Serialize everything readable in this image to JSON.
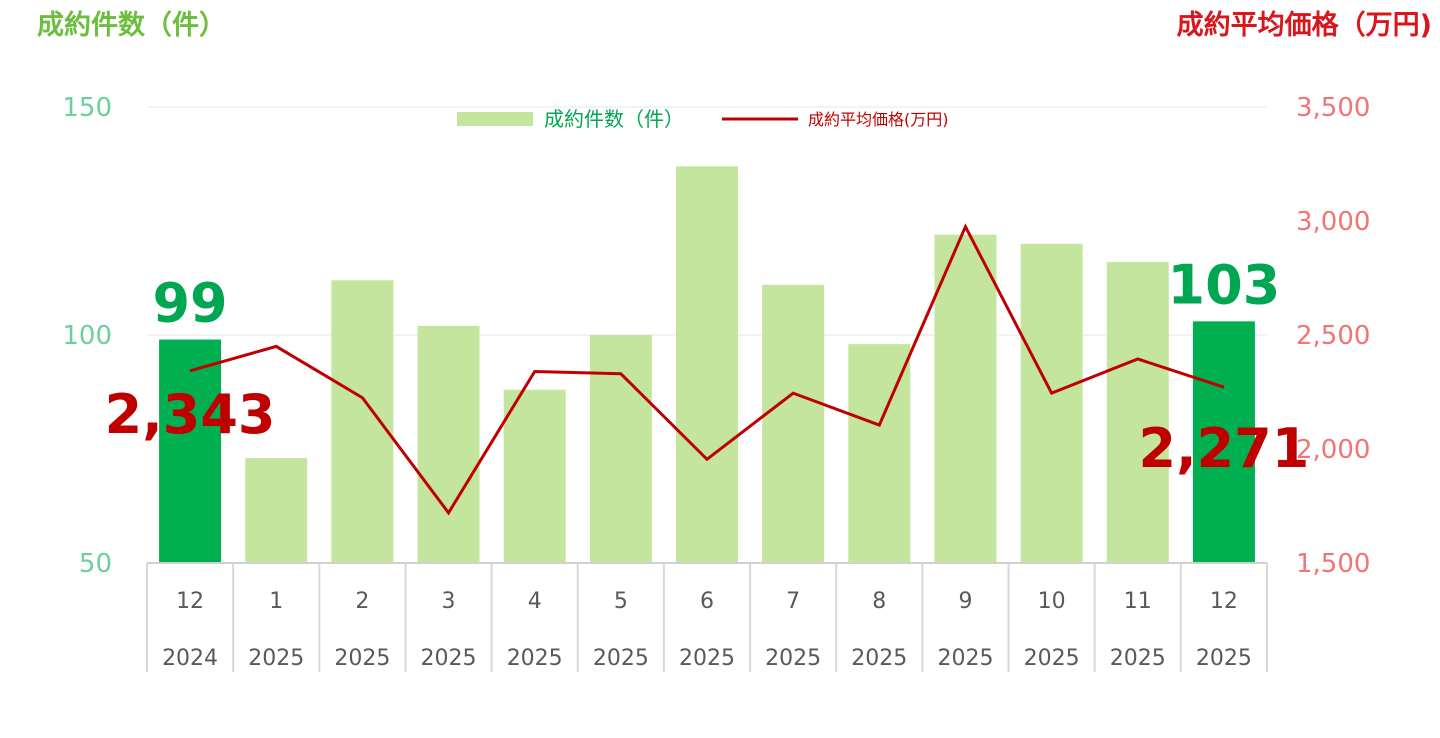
{
  "header": {
    "left_title": "成約件数（件）",
    "right_title": "成約平均価格（万円)",
    "left_color": "#6cbf3c",
    "right_color": "#d9161c"
  },
  "legend": {
    "bar_label": "成約件数（件）",
    "line_label": "成約平均価格(万円)",
    "placement": "top-center"
  },
  "chart_data": {
    "type": "bar",
    "categories": [
      {
        "month": "12",
        "year": "2024"
      },
      {
        "month": "1",
        "year": "2025"
      },
      {
        "month": "2",
        "year": "2025"
      },
      {
        "month": "3",
        "year": "2025"
      },
      {
        "month": "4",
        "year": "2025"
      },
      {
        "month": "5",
        "year": "2025"
      },
      {
        "month": "6",
        "year": "2025"
      },
      {
        "month": "7",
        "year": "2025"
      },
      {
        "month": "8",
        "year": "2025"
      },
      {
        "month": "9",
        "year": "2025"
      },
      {
        "month": "10",
        "year": "2025"
      },
      {
        "month": "11",
        "year": "2025"
      },
      {
        "month": "12",
        "year": "2025"
      }
    ],
    "series": [
      {
        "name": "成約件数（件）",
        "type": "bar",
        "axis": "left",
        "values": [
          99,
          73,
          112,
          102,
          88,
          100,
          137,
          111,
          98,
          122,
          120,
          116,
          103
        ],
        "color": "#c3e59d",
        "highlight_color": "#00b050",
        "highlight_indices": [
          0,
          12
        ]
      },
      {
        "name": "成約平均価格(万円)",
        "type": "line",
        "axis": "right",
        "values": [
          2343,
          2450,
          2225,
          1720,
          2340,
          2330,
          1955,
          2245,
          2105,
          2975,
          2245,
          2395,
          2271
        ],
        "color": "#c00000"
      }
    ],
    "y_left": {
      "min": 50,
      "max": 150,
      "ticks": [
        "50",
        "100",
        "150"
      ],
      "color": "#6dcf9a"
    },
    "y_right": {
      "min": 1500,
      "max": 3500,
      "ticks": [
        "1,500",
        "2,000",
        "2,500",
        "3,000",
        "3,500"
      ],
      "color": "#f27474"
    },
    "grid": true,
    "annotations": [
      {
        "text": "99",
        "target": "bar",
        "index": 0,
        "color": "#00a651"
      },
      {
        "text": "103",
        "target": "bar",
        "index": 12,
        "color": "#00a651"
      },
      {
        "text": "2,343",
        "target": "line",
        "index": 0,
        "color": "#c00000"
      },
      {
        "text": "2,271",
        "target": "line",
        "index": 12,
        "color": "#c00000"
      }
    ]
  }
}
